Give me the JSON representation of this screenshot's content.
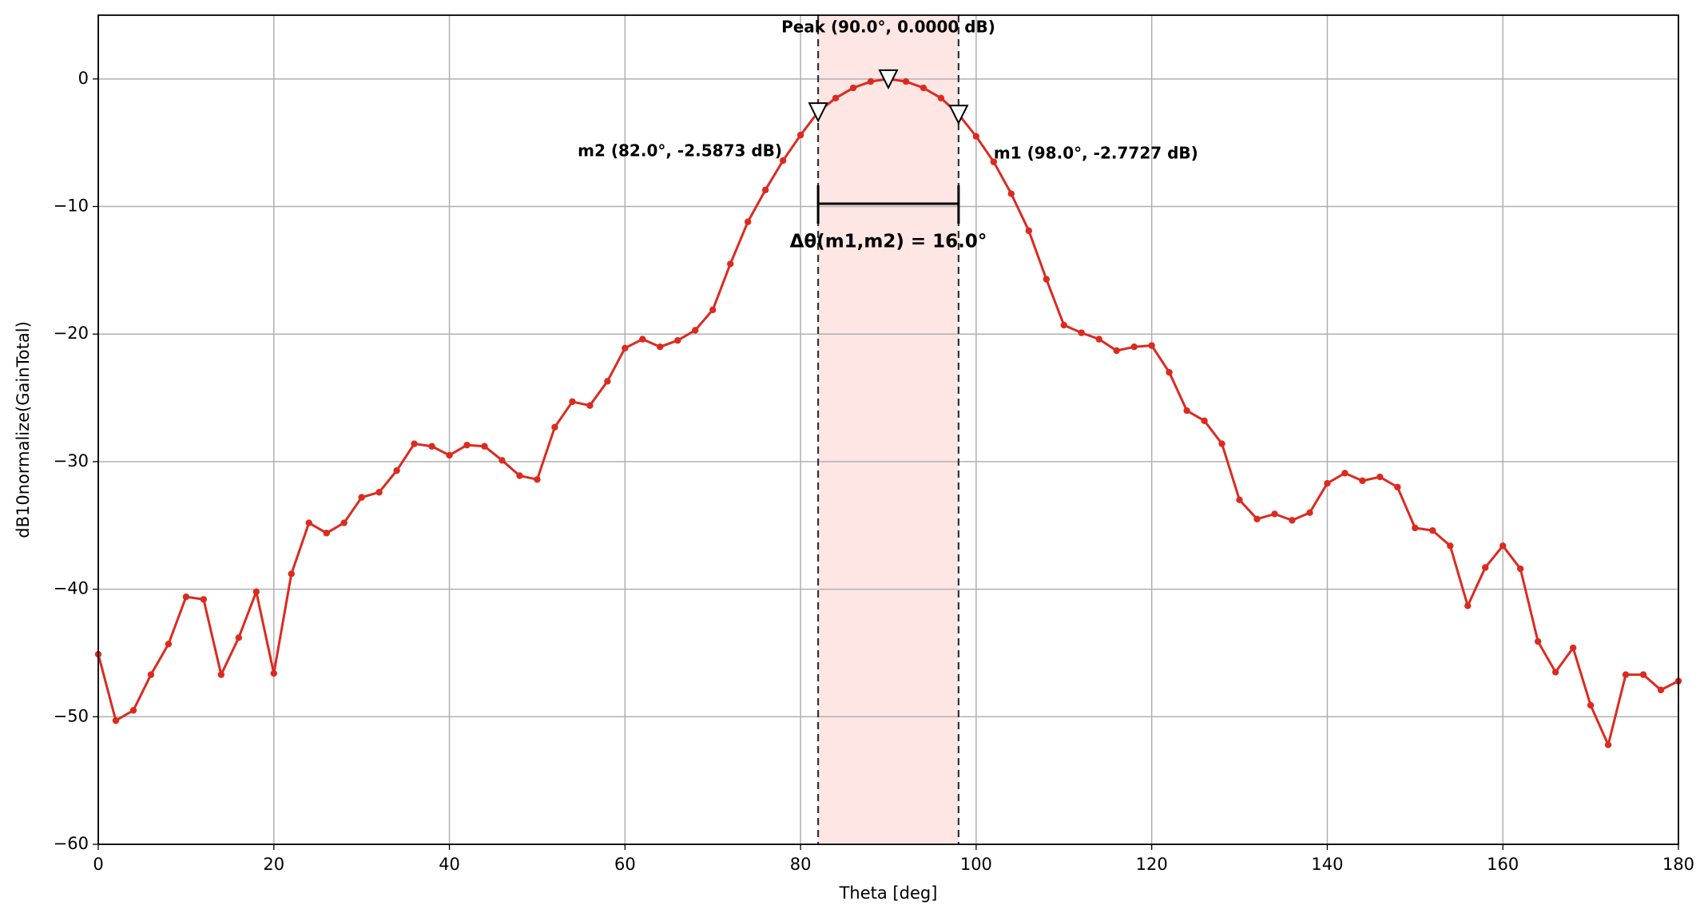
{
  "chart_data": {
    "type": "line",
    "xlabel": "Theta [deg]",
    "ylabel": "dB10normalize(GainTotal)",
    "xlim": [
      0,
      180
    ],
    "ylim": [
      -60,
      5
    ],
    "xticks": [
      0,
      20,
      40,
      60,
      80,
      100,
      120,
      140,
      160,
      180
    ],
    "yticks": [
      {
        "value": -60,
        "label": "−60"
      },
      {
        "value": -50,
        "label": "−50"
      },
      {
        "value": -40,
        "label": "−40"
      },
      {
        "value": -30,
        "label": "−30"
      },
      {
        "value": -20,
        "label": "−20"
      },
      {
        "value": -10,
        "label": "−10"
      },
      0
    ],
    "grid": true,
    "x": [
      0,
      2,
      4,
      6,
      8,
      10,
      12,
      14,
      16,
      18,
      20,
      22,
      24,
      26,
      28,
      30,
      32,
      34,
      36,
      38,
      40,
      42,
      44,
      46,
      48,
      50,
      52,
      54,
      56,
      58,
      60,
      62,
      64,
      66,
      68,
      70,
      72,
      74,
      76,
      78,
      80,
      82,
      84,
      86,
      88,
      90,
      92,
      94,
      96,
      98,
      100,
      102,
      104,
      106,
      108,
      110,
      112,
      114,
      116,
      118,
      120,
      122,
      124,
      126,
      128,
      130,
      132,
      134,
      136,
      138,
      140,
      142,
      144,
      146,
      148,
      150,
      152,
      154,
      156,
      158,
      160,
      162,
      164,
      166,
      168,
      170,
      172,
      174,
      176,
      178,
      180
    ],
    "series": [
      {
        "color": "#dc2a1f",
        "values": [
          -45.1,
          -50.3,
          -49.5,
          -46.7,
          -44.3,
          -40.6,
          -40.8,
          -46.7,
          -43.8,
          -40.2,
          -46.6,
          -38.8,
          -34.8,
          -35.6,
          -34.8,
          -32.8,
          -32.4,
          -30.7,
          -28.6,
          -28.8,
          -29.5,
          -28.7,
          -28.8,
          -29.9,
          -31.1,
          -31.4,
          -27.3,
          -25.3,
          -25.6,
          -23.7,
          -21.1,
          -20.4,
          -21.0,
          -20.5,
          -19.7,
          -18.1,
          -14.5,
          -11.2,
          -8.7,
          -6.4,
          -4.4,
          -2.5873,
          -1.5,
          -0.7,
          -0.2,
          0,
          -0.2,
          -0.7,
          -1.5,
          -2.7727,
          -4.5,
          -6.5,
          -9.0,
          -11.9,
          -15.7,
          -19.3,
          -19.9,
          -20.4,
          -21.3,
          -21.0,
          -20.9,
          -23.0,
          -26.0,
          -26.8,
          -28.6,
          -33.0,
          -34.5,
          -34.1,
          -34.6,
          -34.0,
          -31.7,
          -30.9,
          -31.5,
          -31.2,
          -32.0,
          -35.2,
          -35.4,
          -36.6,
          -41.3,
          -38.3,
          -36.6,
          -38.4,
          -44.1,
          -46.5,
          -44.6,
          -49.1,
          -52.2,
          -46.7,
          -46.7,
          -47.9,
          -47.2
        ]
      }
    ],
    "markers": [
      {
        "label": "m2 (82.0°, -2.5873 dB)",
        "x": 82,
        "y": -2.5873
      },
      {
        "label": "Peak (90.0°, 0.0000 dB)",
        "x": 90,
        "y": 0
      },
      {
        "label": "m1 (98.0°, -2.7727 dB)",
        "x": 98,
        "y": -2.7727
      }
    ],
    "delta_label": "Δθ(m1,m2) = 16.0°"
  }
}
